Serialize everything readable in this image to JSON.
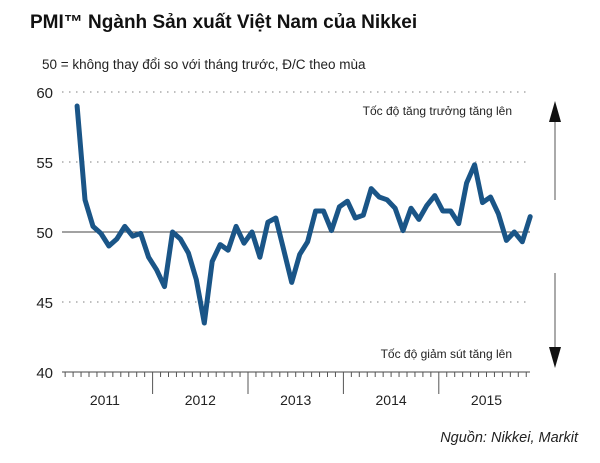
{
  "chart_data": {
    "type": "line",
    "title": "PMI™ Ngành Sản xuất Việt Nam của Nikkei",
    "subtitle": "50 = không thay đổi so với tháng trước, Đ/C theo mùa",
    "source": "Nguồn: Nikkei, Markit",
    "ylim": [
      40,
      60
    ],
    "yticks": [
      "60",
      "55",
      "50",
      "45",
      "40"
    ],
    "xticks": [
      "2011",
      "2012",
      "2013",
      "2014",
      "2015"
    ],
    "x_start": "2011-03",
    "x_end": "2015-12",
    "frequency": "monthly",
    "grid": "dotted horizontal",
    "reference_line": 50,
    "annotations": {
      "up": "Tốc độ tăng trưởng tăng lên",
      "down": "Tốc độ giảm sút tăng lên"
    },
    "series": [
      {
        "color": "#1a5587",
        "values": [
          59.0,
          52.3,
          50.4,
          49.9,
          49.0,
          49.5,
          50.4,
          49.7,
          49.9,
          48.2,
          47.3,
          46.1,
          50.0,
          49.5,
          48.5,
          46.6,
          43.5,
          47.9,
          49.1,
          48.7,
          50.4,
          49.2,
          50.0,
          48.2,
          50.7,
          51.0,
          48.7,
          46.4,
          48.4,
          49.3,
          51.5,
          51.5,
          50.1,
          51.8,
          52.2,
          51.0,
          51.2,
          53.1,
          52.5,
          52.3,
          51.7,
          50.1,
          51.7,
          50.9,
          51.9,
          52.6,
          51.5,
          51.5,
          50.6,
          53.5,
          54.8,
          52.1,
          52.5,
          51.3,
          49.4,
          50.0,
          49.3,
          51.1
        ]
      }
    ]
  }
}
